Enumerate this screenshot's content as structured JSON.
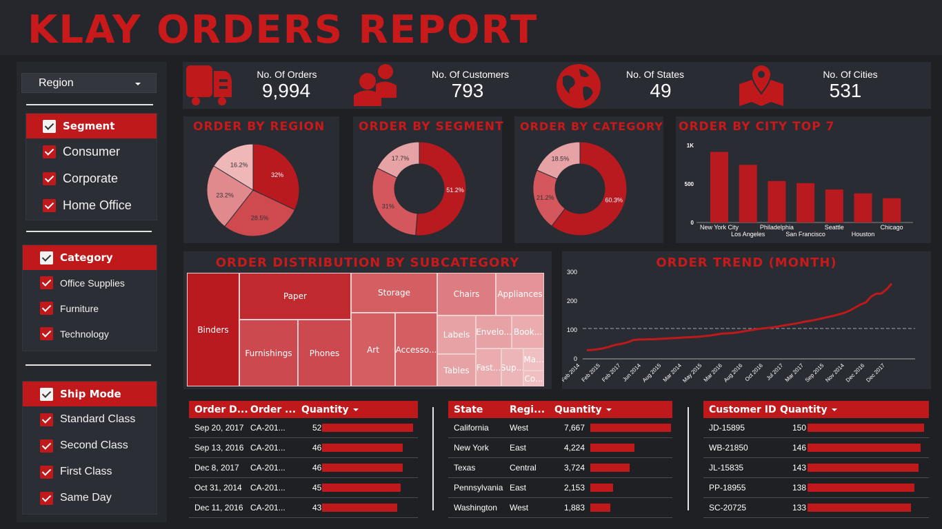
{
  "title": "KLAY ORDERS REPORT",
  "sidebar": {
    "region_dropdown": "Region",
    "segment": {
      "header": "Segment",
      "items": [
        "Consumer",
        "Corporate",
        "Home Office"
      ]
    },
    "category": {
      "header": "Category",
      "items": [
        "Office Supplies",
        "Furniture",
        "Technology"
      ]
    },
    "ship_mode": {
      "header": "Ship Mode",
      "items": [
        "Standard Class",
        "Second Class",
        "First Class",
        "Same Day"
      ]
    }
  },
  "kpis": [
    {
      "label": "No. Of Orders",
      "value": "9,994",
      "icon": "truck-icon"
    },
    {
      "label": "No. Of Customers",
      "value": "793",
      "icon": "users-icon"
    },
    {
      "label": "No. Of States",
      "value": "49",
      "icon": "globe-icon"
    },
    {
      "label": "No. Of Cities",
      "value": "531",
      "icon": "map-pin-icon"
    }
  ],
  "colors": {
    "accent": "#c0191c",
    "background": "#1e2024",
    "panel": "#292c33"
  },
  "chart_data": [
    {
      "type": "pie",
      "title": "ORDER BY REGION",
      "values": [
        32,
        28.5,
        23.2,
        16.2
      ],
      "labels": [
        "32%",
        "28.5%",
        "23.2%",
        "16.2%"
      ],
      "colors": [
        "#b81a1f",
        "#cf4a4f",
        "#e08a8e",
        "#f0b7b9"
      ]
    },
    {
      "type": "pie",
      "title": "ORDER BY SEGMENT",
      "donut": true,
      "values": [
        51.2,
        31,
        17.7
      ],
      "labels": [
        "51.2%",
        "31%",
        "17.7%"
      ],
      "colors": [
        "#b81a1f",
        "#d3575c",
        "#e7a2a5"
      ]
    },
    {
      "type": "pie",
      "title": "ORDER BY CATEGORY",
      "donut": true,
      "values": [
        60.3,
        21.2,
        18.5
      ],
      "labels": [
        "60.3%",
        "21.2%",
        "18.5%"
      ],
      "colors": [
        "#b81a1f",
        "#d3575c",
        "#e7a2a5"
      ]
    },
    {
      "type": "bar",
      "title": "ORDER BY CITY TOP 7",
      "categories": [
        "New York City",
        "Los Angeles",
        "Philadelphia",
        "San Francisco",
        "Seattle",
        "Houston",
        "Chicago"
      ],
      "values": [
        915,
        747,
        537,
        510,
        428,
        377,
        314
      ],
      "ylim": [
        0,
        1000
      ],
      "yticks": [
        "0",
        "500",
        "1K"
      ]
    },
    {
      "type": "treemap",
      "title": "ORDER DISTRIBUTION BY SUBCATEGORY",
      "labels": [
        "Binders",
        "Paper",
        "Furnishings",
        "Phones",
        "Storage",
        "Art",
        "Accesso...",
        "Chairs",
        "Appliances",
        "Labels",
        "Envelo...",
        "Book...",
        "Tables",
        "Fast...",
        "Sup...",
        "Ma...",
        "Co..."
      ]
    },
    {
      "type": "line",
      "title": "ORDER TREND (MONTH)",
      "x_labels": [
        "Feb 2014",
        "Feb 2015",
        "Feb 2017",
        "Jun 2014",
        "Aug 2015",
        "Mar 2014",
        "May 2015",
        "Mar 2016",
        "Aug 2016",
        "Oct 2016",
        "Jul 2017",
        "Mar 2017",
        "Sep 2015",
        "Nov 2014",
        "Dec 2016",
        "Dec 2017"
      ],
      "ylim": [
        0,
        300
      ],
      "yticks": [
        "0",
        "100",
        "200",
        "300"
      ],
      "average": 105,
      "values": [
        30,
        31,
        33,
        36,
        40,
        46,
        50,
        53,
        58,
        65,
        67,
        67,
        68,
        68,
        69,
        70,
        71,
        72,
        73,
        74,
        75,
        76,
        77,
        79,
        81,
        84,
        87,
        88,
        89,
        91,
        94,
        97,
        100,
        103,
        105,
        107,
        109,
        112,
        115,
        118,
        121,
        124,
        128,
        131,
        134,
        138,
        142,
        146,
        150,
        155,
        160,
        168,
        178,
        188,
        195,
        215,
        225,
        226,
        240,
        260
      ]
    }
  ],
  "orders_table": {
    "headers": [
      "Order D...",
      "Order ...",
      "Quantity"
    ],
    "rows": [
      {
        "date": "Sep 20, 2017",
        "id": "CA-201...",
        "qty": "52",
        "value": 52
      },
      {
        "date": "Sep 13, 2016",
        "id": "CA-201...",
        "qty": "46",
        "value": 46
      },
      {
        "date": "Dec 8, 2017",
        "id": "CA-201...",
        "qty": "46",
        "value": 46
      },
      {
        "date": "Oct 31, 2014",
        "id": "CA-201...",
        "qty": "45",
        "value": 45
      },
      {
        "date": "Dec 11, 2016",
        "id": "CA-201...",
        "qty": "43",
        "value": 43
      }
    ]
  },
  "states_table": {
    "headers": [
      "State",
      "Regi...",
      "Quantity"
    ],
    "rows": [
      {
        "state": "California",
        "region": "West",
        "qty": "7,667",
        "value": 7667
      },
      {
        "state": "New York",
        "region": "East",
        "qty": "4,224",
        "value": 4224
      },
      {
        "state": "Texas",
        "region": "Central",
        "qty": "3,724",
        "value": 3724
      },
      {
        "state": "Pennsylvania",
        "region": "East",
        "qty": "2,153",
        "value": 2153
      },
      {
        "state": "Washington",
        "region": "West",
        "qty": "1,883",
        "value": 1883
      }
    ]
  },
  "customers_table": {
    "headers": [
      "Customer ID",
      "Quantity"
    ],
    "rows": [
      {
        "id": "JD-15895",
        "qty": "150",
        "value": 150
      },
      {
        "id": "WB-21850",
        "qty": "146",
        "value": 146
      },
      {
        "id": "JL-15835",
        "qty": "143",
        "value": 143
      },
      {
        "id": "PP-18955",
        "qty": "138",
        "value": 138
      },
      {
        "id": "SC-20725",
        "qty": "133",
        "value": 133
      }
    ]
  }
}
